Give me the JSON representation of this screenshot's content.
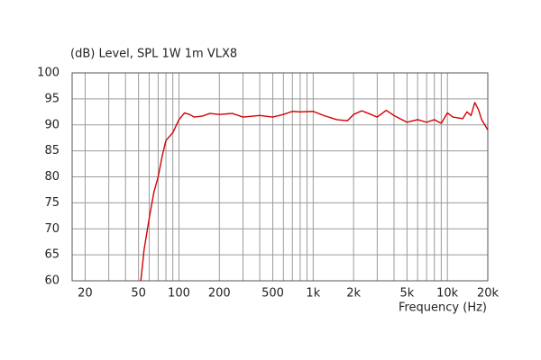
{
  "chart_data": {
    "type": "line",
    "title": "(dB)  Level, SPL 1W 1m VLX8",
    "x_label": "Frequency  (Hz)",
    "log_x": true,
    "grid": true,
    "xlim": [
      16,
      20000
    ],
    "ylim": [
      60,
      100
    ],
    "xticks": [
      20,
      50,
      100,
      200,
      500,
      {
        "value": 1000,
        "label": "1k"
      },
      {
        "value": 2000,
        "label": "2k"
      },
      {
        "value": 5000,
        "label": "5k"
      },
      {
        "value": 10000,
        "label": "10k"
      },
      {
        "value": 20000,
        "label": "20k"
      }
    ],
    "x_minor_ticks": [
      30,
      40,
      60,
      70,
      80,
      90,
      300,
      400,
      600,
      700,
      800,
      900,
      3000,
      4000,
      6000,
      7000,
      8000,
      9000
    ],
    "yticks": [
      60,
      65,
      70,
      75,
      80,
      85,
      90,
      95,
      100
    ],
    "series": [
      {
        "name": "Level, SPL 1W 1m VLX8",
        "color": "#d40000",
        "x": [
          52,
          55,
          60,
          65,
          70,
          75,
          80,
          90,
          100,
          110,
          120,
          130,
          150,
          170,
          200,
          250,
          300,
          400,
          500,
          600,
          700,
          800,
          1000,
          1200,
          1500,
          1800,
          2000,
          2300,
          2700,
          3000,
          3500,
          4000,
          5000,
          6000,
          7000,
          8000,
          9000,
          10000,
          11000,
          13000,
          14000,
          15000,
          16000,
          17000,
          18000,
          19000,
          20000
        ],
        "values": [
          60,
          66,
          72,
          77,
          80,
          84,
          87,
          88.5,
          91,
          92.3,
          92,
          91.5,
          91.7,
          92.2,
          92,
          92.2,
          91.5,
          91.8,
          91.5,
          92,
          92.6,
          92.5,
          92.6,
          91.8,
          91,
          90.8,
          92,
          92.7,
          92,
          91.5,
          92.8,
          91.8,
          90.5,
          91,
          90.5,
          91,
          90.3,
          92.3,
          91.5,
          91.2,
          92.5,
          91.8,
          94.3,
          93,
          91,
          90,
          89
        ]
      }
    ]
  }
}
